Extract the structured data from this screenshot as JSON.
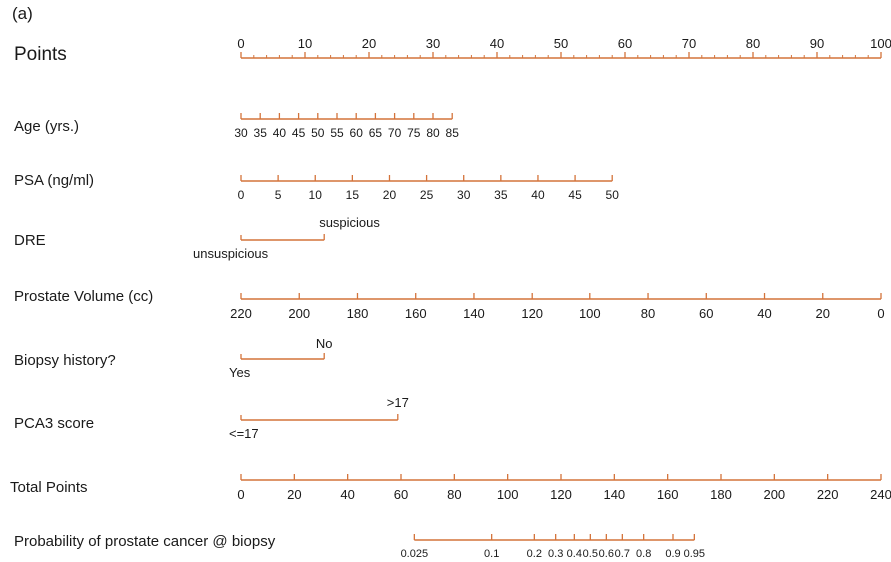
{
  "panel_label": "(a)",
  "chart_data": {
    "type": "nomogram",
    "accent_color": "#d4733a",
    "rows": [
      {
        "id": "points",
        "label": "Points",
        "orientation": "left-to-right",
        "ticks": [
          "0",
          "10",
          "20",
          "30",
          "40",
          "50",
          "60",
          "70",
          "80",
          "90",
          "100"
        ],
        "points_at_tick": [
          0,
          10,
          20,
          30,
          40,
          50,
          60,
          70,
          80,
          90,
          100
        ]
      },
      {
        "id": "age",
        "label": "Age (yrs.)",
        "orientation": "left-to-right",
        "ticks": [
          "30",
          "35",
          "40",
          "45",
          "50",
          "55",
          "60",
          "65",
          "70",
          "75",
          "80",
          "85"
        ],
        "points_at_tick": [
          0,
          3,
          6,
          9,
          12,
          15,
          18,
          21,
          24,
          27,
          30,
          33
        ]
      },
      {
        "id": "psa",
        "label": "PSA (ng/ml)",
        "orientation": "left-to-right",
        "ticks": [
          "0",
          "5",
          "10",
          "15",
          "20",
          "25",
          "30",
          "35",
          "40",
          "45",
          "50"
        ],
        "points_at_tick": [
          0,
          5.8,
          11.6,
          17.4,
          23.2,
          29,
          34.8,
          40.6,
          46.4,
          52.2,
          58
        ]
      },
      {
        "id": "dre",
        "label": "DRE",
        "orientation": "categorical",
        "ticks": [
          "unsuspicious",
          "suspicious"
        ],
        "points_at_tick": [
          0,
          13
        ]
      },
      {
        "id": "volume",
        "label": "Prostate Volume (cc)",
        "orientation": "right-to-left",
        "ticks": [
          "220",
          "200",
          "180",
          "160",
          "140",
          "120",
          "100",
          "80",
          "60",
          "40",
          "20",
          "0"
        ],
        "points_at_tick": [
          0,
          9.1,
          18.2,
          27.3,
          36.4,
          45.5,
          54.5,
          63.6,
          72.7,
          81.8,
          90.9,
          100
        ]
      },
      {
        "id": "biopsy",
        "label": "Biopsy history?",
        "orientation": "categorical",
        "ticks": [
          "Yes",
          "No"
        ],
        "points_at_tick": [
          0,
          13
        ]
      },
      {
        "id": "pca3",
        "label": "PCA3 score",
        "orientation": "categorical",
        "ticks": [
          "<=17",
          ">17"
        ],
        "points_at_tick": [
          0,
          24.5
        ]
      },
      {
        "id": "total",
        "label": "Total Points",
        "orientation": "left-to-right",
        "ticks": [
          "0",
          "20",
          "40",
          "60",
          "80",
          "100",
          "120",
          "140",
          "160",
          "180",
          "200",
          "220",
          "240"
        ],
        "points_at_tick": [
          0,
          20,
          40,
          60,
          80,
          100,
          120,
          140,
          160,
          180,
          200,
          220,
          240
        ]
      },
      {
        "id": "prob",
        "label": "Probability of prostate cancer @ biopsy",
        "orientation": "left-to-right",
        "ticks": [
          "0.025",
          "0.1",
          "0.2",
          "0.3",
          "0.4",
          "0.5",
          "0.6",
          "0.7",
          "0.8",
          "0.9",
          "0.95"
        ],
        "points_at_tick": [
          65,
          94,
          110,
          118,
          125,
          131,
          137,
          143,
          151,
          162,
          170
        ]
      }
    ]
  }
}
